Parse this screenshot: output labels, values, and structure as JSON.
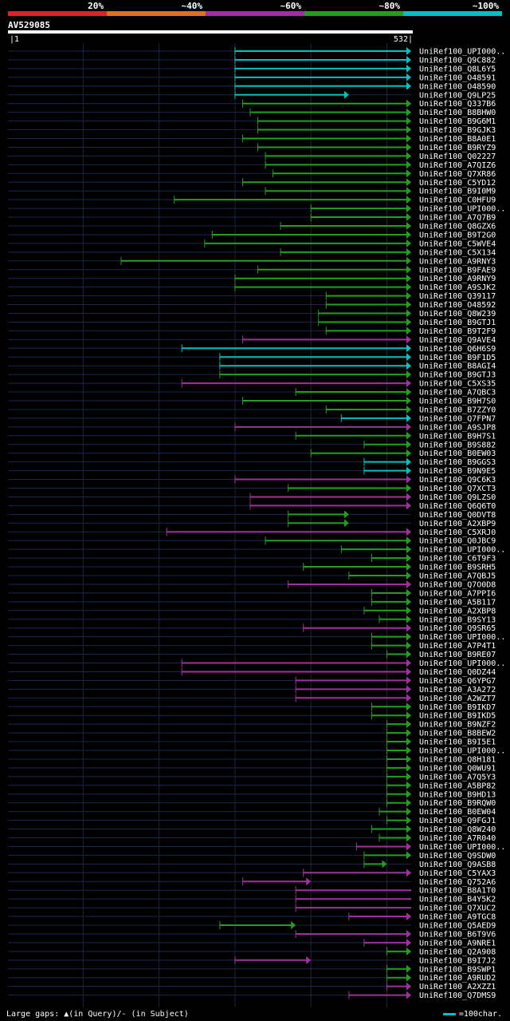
{
  "chart_data": {
    "type": "alignment-hits",
    "query_id": "AV529085",
    "query_start": 1,
    "query_end": 532,
    "identity_legend": [
      {
        "label": "20%",
        "color": "#e0202a"
      },
      {
        "label": "~40%",
        "color": "#e07020"
      },
      {
        "label": "~60%",
        "color": "#a030a0"
      },
      {
        "label": "~80%",
        "color": "#20a020"
      },
      {
        "label": "~100%",
        "color": "#00c0c0"
      }
    ],
    "hits": [
      {
        "name": "UniRef100_UPI000..",
        "start": 300,
        "end": 532,
        "class": "cyan",
        "arrow": true
      },
      {
        "name": "UniRef100_Q9C882",
        "start": 300,
        "end": 532,
        "class": "cyan",
        "arrow": true
      },
      {
        "name": "UniRef100_Q8L6Y5",
        "start": 300,
        "end": 532,
        "class": "cyan",
        "arrow": true
      },
      {
        "name": "UniRef100_O48591",
        "start": 300,
        "end": 532,
        "class": "cyan",
        "arrow": true
      },
      {
        "name": "UniRef100_O48590",
        "start": 300,
        "end": 532,
        "class": "cyan",
        "arrow": true
      },
      {
        "name": "UniRef100_Q9LP25",
        "start": 300,
        "end": 450,
        "class": "cyan",
        "arrow": true
      },
      {
        "name": "UniRef100_Q337B6",
        "start": 310,
        "end": 532,
        "class": "green",
        "arrow": true
      },
      {
        "name": "UniRef100_B8BHW0",
        "start": 320,
        "end": 532,
        "class": "green",
        "arrow": true
      },
      {
        "name": "UniRef100_B9G6M1",
        "start": 330,
        "end": 532,
        "class": "green",
        "arrow": true
      },
      {
        "name": "UniRef100_B9GJK3",
        "start": 330,
        "end": 532,
        "class": "green",
        "arrow": true
      },
      {
        "name": "UniRef100_B8A0E1",
        "start": 310,
        "end": 532,
        "class": "green",
        "arrow": true
      },
      {
        "name": "UniRef100_B9RYZ9",
        "start": 330,
        "end": 532,
        "class": "green",
        "arrow": true
      },
      {
        "name": "UniRef100_Q02227",
        "start": 340,
        "end": 532,
        "class": "green",
        "arrow": true
      },
      {
        "name": "UniRef100_A7QIZ6",
        "start": 340,
        "end": 532,
        "class": "green",
        "arrow": true
      },
      {
        "name": "UniRef100_Q7XR86",
        "start": 350,
        "end": 532,
        "class": "green",
        "arrow": true
      },
      {
        "name": "UniRef100_C5YD12",
        "start": 310,
        "end": 532,
        "class": "green",
        "arrow": true
      },
      {
        "name": "UniRef100_B9I0M9",
        "start": 340,
        "end": 532,
        "class": "green",
        "arrow": true
      },
      {
        "name": "UniRef100_C0HFU9",
        "start": 220,
        "end": 532,
        "class": "green",
        "arrow": true
      },
      {
        "name": "UniRef100_UPI000..",
        "start": 400,
        "end": 532,
        "class": "green",
        "arrow": true
      },
      {
        "name": "UniRef100_A7Q7B9",
        "start": 400,
        "end": 532,
        "class": "green",
        "arrow": true
      },
      {
        "name": "UniRef100_Q8GZX6",
        "start": 360,
        "end": 532,
        "class": "green",
        "arrow": true
      },
      {
        "name": "UniRef100_B9T2G0",
        "start": 270,
        "end": 532,
        "class": "green",
        "arrow": true
      },
      {
        "name": "UniRef100_C5WVE4",
        "start": 260,
        "end": 532,
        "class": "green",
        "arrow": true
      },
      {
        "name": "UniRef100_C5X134",
        "start": 360,
        "end": 532,
        "class": "green",
        "arrow": true
      },
      {
        "name": "UniRef100_A9RNY3",
        "start": 150,
        "end": 532,
        "class": "green",
        "arrow": true
      },
      {
        "name": "UniRef100_B9FAE9",
        "start": 330,
        "end": 532,
        "class": "green",
        "arrow": true
      },
      {
        "name": "UniRef100_A9RNY9",
        "start": 300,
        "end": 532,
        "class": "green",
        "arrow": true
      },
      {
        "name": "UniRef100_A9SJK2",
        "start": 300,
        "end": 532,
        "class": "green",
        "arrow": true
      },
      {
        "name": "UniRef100_Q39117",
        "start": 420,
        "end": 532,
        "class": "green",
        "arrow": true
      },
      {
        "name": "UniRef100_O48592",
        "start": 420,
        "end": 532,
        "class": "green",
        "arrow": true
      },
      {
        "name": "UniRef100_Q8W239",
        "start": 410,
        "end": 532,
        "class": "green",
        "arrow": true
      },
      {
        "name": "UniRef100_B9GTJ1",
        "start": 410,
        "end": 532,
        "class": "green",
        "arrow": true
      },
      {
        "name": "UniRef100_B9T2F9",
        "start": 420,
        "end": 532,
        "class": "green",
        "arrow": true
      },
      {
        "name": "UniRef100_Q9AVE4",
        "start": 310,
        "end": 532,
        "class": "magenta",
        "arrow": true
      },
      {
        "name": "UniRef100_Q6H6S9",
        "start": 230,
        "end": 532,
        "class": "cyan",
        "arrow": true
      },
      {
        "name": "UniRef100_B9F1D5",
        "start": 280,
        "end": 532,
        "class": "cyan",
        "arrow": true
      },
      {
        "name": "UniRef100_B8AGI4",
        "start": 280,
        "end": 532,
        "class": "cyan",
        "arrow": true
      },
      {
        "name": "UniRef100_B9GTJ3",
        "start": 280,
        "end": 532,
        "class": "green",
        "arrow": true
      },
      {
        "name": "UniRef100_C5XS35",
        "start": 230,
        "end": 532,
        "class": "magenta",
        "arrow": true
      },
      {
        "name": "UniRef100_A7QBC3",
        "start": 380,
        "end": 532,
        "class": "green",
        "arrow": true
      },
      {
        "name": "UniRef100_B9H7S0",
        "start": 310,
        "end": 532,
        "class": "green",
        "arrow": true
      },
      {
        "name": "UniRef100_B7ZZY0",
        "start": 420,
        "end": 532,
        "class": "green",
        "arrow": true
      },
      {
        "name": "UniRef100_Q7FPN7",
        "start": 440,
        "end": 532,
        "class": "cyan",
        "arrow": true
      },
      {
        "name": "UniRef100_A9SJP8",
        "start": 300,
        "end": 532,
        "class": "magenta",
        "arrow": true
      },
      {
        "name": "UniRef100_B9H7S1",
        "start": 380,
        "end": 532,
        "class": "green",
        "arrow": true
      },
      {
        "name": "UniRef100_B9S882",
        "start": 470,
        "end": 532,
        "class": "green",
        "arrow": true
      },
      {
        "name": "UniRef100_B0EW03",
        "start": 400,
        "end": 532,
        "class": "green",
        "arrow": true
      },
      {
        "name": "UniRef100_B9GGS3",
        "start": 470,
        "end": 532,
        "class": "cyan",
        "arrow": true
      },
      {
        "name": "UniRef100_B9N9E5",
        "start": 470,
        "end": 532,
        "class": "cyan",
        "arrow": true
      },
      {
        "name": "UniRef100_Q9C6K3",
        "start": 300,
        "end": 532,
        "class": "magenta",
        "arrow": true
      },
      {
        "name": "UniRef100_Q7XCT3",
        "start": 370,
        "end": 532,
        "class": "green",
        "arrow": true
      },
      {
        "name": "UniRef100_Q9LZS0",
        "start": 320,
        "end": 532,
        "class": "magenta",
        "arrow": true
      },
      {
        "name": "UniRef100_Q6Q6T0",
        "start": 320,
        "end": 532,
        "class": "magenta",
        "arrow": true
      },
      {
        "name": "UniRef100_Q0DVT8",
        "start": 370,
        "end": 450,
        "class": "green",
        "arrow": true
      },
      {
        "name": "UniRef100_A2XBP9",
        "start": 370,
        "end": 450,
        "class": "green",
        "arrow": true
      },
      {
        "name": "UniRef100_C5XRJ0",
        "start": 210,
        "end": 532,
        "class": "magenta",
        "arrow": true
      },
      {
        "name": "UniRef100_Q0JBC9",
        "start": 340,
        "end": 532,
        "class": "green",
        "arrow": true
      },
      {
        "name": "UniRef100_UPI000..",
        "start": 440,
        "end": 532,
        "class": "green",
        "arrow": true
      },
      {
        "name": "UniRef100_C6T9F3",
        "start": 480,
        "end": 532,
        "class": "green",
        "arrow": true
      },
      {
        "name": "UniRef100_B9SRH5",
        "start": 390,
        "end": 532,
        "class": "green",
        "arrow": true
      },
      {
        "name": "UniRef100_A7QBJ5",
        "start": 450,
        "end": 532,
        "class": "green",
        "arrow": true
      },
      {
        "name": "UniRef100_Q7O0D8",
        "start": 370,
        "end": 532,
        "class": "magenta",
        "arrow": true
      },
      {
        "name": "UniRef100_A7PPI6",
        "start": 480,
        "end": 532,
        "class": "green",
        "arrow": true
      },
      {
        "name": "UniRef100_A5B117",
        "start": 480,
        "end": 532,
        "class": "green",
        "arrow": true
      },
      {
        "name": "UniRef100_A2XBP8",
        "start": 470,
        "end": 532,
        "class": "green",
        "arrow": true
      },
      {
        "name": "UniRef100_B9SY13",
        "start": 490,
        "end": 532,
        "class": "green",
        "arrow": true
      },
      {
        "name": "UniRef100_Q9SR65",
        "start": 390,
        "end": 532,
        "class": "magenta",
        "arrow": true
      },
      {
        "name": "UniRef100_UPI000..",
        "start": 480,
        "end": 532,
        "class": "green",
        "arrow": true
      },
      {
        "name": "UniRef100_A7P4T1",
        "start": 480,
        "end": 532,
        "class": "green",
        "arrow": true
      },
      {
        "name": "UniRef100_B9RE07",
        "start": 500,
        "end": 532,
        "class": "green",
        "arrow": true
      },
      {
        "name": "UniRef100_UPI000..",
        "start": 230,
        "end": 532,
        "class": "magenta",
        "arrow": true
      },
      {
        "name": "UniRef100_Q0DZ44",
        "start": 230,
        "end": 532,
        "class": "magenta",
        "arrow": true
      },
      {
        "name": "UniRef100_Q6YPG7",
        "start": 380,
        "end": 532,
        "class": "magenta",
        "arrow": true
      },
      {
        "name": "UniRef100_A3A272",
        "start": 380,
        "end": 532,
        "class": "magenta",
        "arrow": true
      },
      {
        "name": "UniRef100_A2WZT7",
        "start": 380,
        "end": 532,
        "class": "magenta",
        "arrow": true
      },
      {
        "name": "UniRef100_B9IKD7",
        "start": 480,
        "end": 532,
        "class": "green",
        "arrow": true
      },
      {
        "name": "UniRef100_B9IKD5",
        "start": 480,
        "end": 532,
        "class": "green",
        "arrow": true
      },
      {
        "name": "UniRef100_B9NZF2",
        "start": 500,
        "end": 532,
        "class": "green",
        "arrow": true
      },
      {
        "name": "UniRef100_B8BEW2",
        "start": 500,
        "end": 532,
        "class": "green",
        "arrow": true
      },
      {
        "name": "UniRef100_B9I5E1",
        "start": 500,
        "end": 532,
        "class": "green",
        "arrow": true
      },
      {
        "name": "UniRef100_UPI000..",
        "start": 500,
        "end": 532,
        "class": "green",
        "arrow": true
      },
      {
        "name": "UniRef100_Q8H181",
        "start": 500,
        "end": 532,
        "class": "green",
        "arrow": true
      },
      {
        "name": "UniRef100_Q0WU91",
        "start": 500,
        "end": 532,
        "class": "green",
        "arrow": true
      },
      {
        "name": "UniRef100_A7Q5Y3",
        "start": 500,
        "end": 532,
        "class": "green",
        "arrow": true
      },
      {
        "name": "UniRef100_A5BP82",
        "start": 500,
        "end": 532,
        "class": "green",
        "arrow": true
      },
      {
        "name": "UniRef100_B9HD13",
        "start": 500,
        "end": 532,
        "class": "green",
        "arrow": true
      },
      {
        "name": "UniRef100_B9RQW0",
        "start": 500,
        "end": 532,
        "class": "green",
        "arrow": true
      },
      {
        "name": "UniRef100_B0EW04",
        "start": 490,
        "end": 532,
        "class": "green",
        "arrow": true
      },
      {
        "name": "UniRef100_Q9FGJ1",
        "start": 500,
        "end": 532,
        "class": "green",
        "arrow": true
      },
      {
        "name": "UniRef100_Q8W240",
        "start": 480,
        "end": 532,
        "class": "green",
        "arrow": true
      },
      {
        "name": "UniRef100_A7R040",
        "start": 490,
        "end": 532,
        "class": "green",
        "arrow": true
      },
      {
        "name": "UniRef100_UPI000..",
        "start": 460,
        "end": 532,
        "class": "magenta",
        "arrow": true
      },
      {
        "name": "UniRef100_Q9SDW0",
        "start": 470,
        "end": 532,
        "class": "green",
        "arrow": true
      },
      {
        "name": "UniRef100_Q9ASB8",
        "start": 470,
        "end": 500,
        "class": "green",
        "arrow": true
      },
      {
        "name": "UniRef100_C5YAX3",
        "start": 390,
        "end": 532,
        "class": "magenta",
        "arrow": true
      },
      {
        "name": "UniRef100_Q752A6",
        "start": 310,
        "end": 400,
        "class": "magenta",
        "arrow": true
      },
      {
        "name": "UniRef100_B8A1T0",
        "start": 380,
        "end": 532,
        "class": "magenta",
        "arrow": false
      },
      {
        "name": "UniRef100_B4Y5K2",
        "start": 380,
        "end": 532,
        "class": "magenta",
        "arrow": false
      },
      {
        "name": "UniRef100_Q7XUC2",
        "start": 380,
        "end": 532,
        "class": "magenta",
        "arrow": false
      },
      {
        "name": "UniRef100_A9TGC8",
        "start": 450,
        "end": 532,
        "class": "magenta",
        "arrow": true
      },
      {
        "name": "UniRef100_Q5AED9",
        "start": 280,
        "end": 380,
        "class": "green",
        "arrow": true
      },
      {
        "name": "UniRef100_B6T9V6",
        "start": 380,
        "end": 532,
        "class": "magenta",
        "arrow": true
      },
      {
        "name": "UniRef100_A9NRE1",
        "start": 470,
        "end": 532,
        "class": "magenta",
        "arrow": true
      },
      {
        "name": "UniRef100_Q2A908",
        "start": 500,
        "end": 532,
        "class": "green",
        "arrow": true
      },
      {
        "name": "UniRef100_B9I7J2",
        "start": 300,
        "end": 400,
        "class": "magenta",
        "arrow": true
      },
      {
        "name": "UniRef100_B9SWP1",
        "start": 500,
        "end": 532,
        "class": "green",
        "arrow": true
      },
      {
        "name": "UniRef100_A9RUD2",
        "start": 500,
        "end": 532,
        "class": "green",
        "arrow": true
      },
      {
        "name": "UniRef100_A2XZZ1",
        "start": 500,
        "end": 532,
        "class": "magenta",
        "arrow": true
      },
      {
        "name": "UniRef100_Q7DMS9",
        "start": 450,
        "end": 532,
        "class": "magenta",
        "arrow": true
      }
    ],
    "footer_left": "Large gaps: ▲(in Query)/- (in Subject)",
    "footer_right": "=100char."
  }
}
